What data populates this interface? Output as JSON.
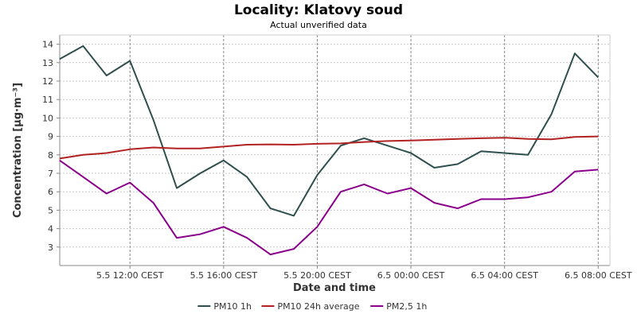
{
  "chart_data": {
    "type": "line",
    "title": "Locality: Klatovy soud",
    "subtitle": "Actual unverified data",
    "xlabel": "Date and time",
    "ylabel": "Concentration [µg·m⁻³]",
    "ylim": [
      2,
      14.5
    ],
    "yticks": [
      3,
      4,
      5,
      6,
      7,
      8,
      9,
      10,
      11,
      12,
      13,
      14
    ],
    "xlim": [
      "5.5 09:00 CEST",
      "6.5 08:30 CEST"
    ],
    "x": [
      "5.5 09:00 CEST",
      "5.5 10:00 CEST",
      "5.5 11:00 CEST",
      "5.5 12:00 CEST",
      "5.5 13:00 CEST",
      "5.5 14:00 CEST",
      "5.5 15:00 CEST",
      "5.5 16:00 CEST",
      "5.5 17:00 CEST",
      "5.5 18:00 CEST",
      "5.5 19:00 CEST",
      "5.5 20:00 CEST",
      "5.5 21:00 CEST",
      "5.5 22:00 CEST",
      "5.5 23:00 CEST",
      "6.5 00:00 CEST",
      "6.5 01:00 CEST",
      "6.5 02:00 CEST",
      "6.5 03:00 CEST",
      "6.5 04:00 CEST",
      "6.5 05:00 CEST",
      "6.5 06:00 CEST",
      "6.5 07:00 CEST",
      "6.5 08:00 CEST"
    ],
    "x_tick_labels": [
      "5.5 12:00 CEST",
      "5.5 16:00 CEST",
      "5.5 20:00 CEST",
      "6.5 00:00 CEST",
      "6.5 04:00 CEST",
      "6.5 08:00 CEST"
    ],
    "grid": true,
    "legend_position": "bottom",
    "series": [
      {
        "name": "PM10 1h",
        "color": "#2f4f4f",
        "values": [
          13.2,
          13.9,
          12.3,
          13.1,
          9.9,
          6.2,
          7.0,
          7.7,
          6.8,
          5.1,
          4.7,
          6.9,
          8.5,
          8.9,
          8.5,
          8.1,
          7.3,
          7.5,
          8.2,
          8.1,
          8.0,
          10.2,
          13.5,
          12.2
        ]
      },
      {
        "name": "PM10 24h average",
        "color": "#b22222",
        "values": [
          7.8,
          8.0,
          8.1,
          8.3,
          8.4,
          8.35,
          8.35,
          8.45,
          8.55,
          8.57,
          8.55,
          8.6,
          8.62,
          8.7,
          8.75,
          8.78,
          8.82,
          8.86,
          8.9,
          8.93,
          8.86,
          8.84,
          8.97,
          9.0
        ]
      },
      {
        "name": "PM2,5 1h",
        "color": "#8b008b",
        "values": [
          7.7,
          6.8,
          5.9,
          6.5,
          5.4,
          3.5,
          3.7,
          4.1,
          3.5,
          2.6,
          2.9,
          4.1,
          6.0,
          6.4,
          5.9,
          6.2,
          5.4,
          5.1,
          5.6,
          5.6,
          5.7,
          6.0,
          7.1,
          7.2
        ]
      }
    ]
  }
}
